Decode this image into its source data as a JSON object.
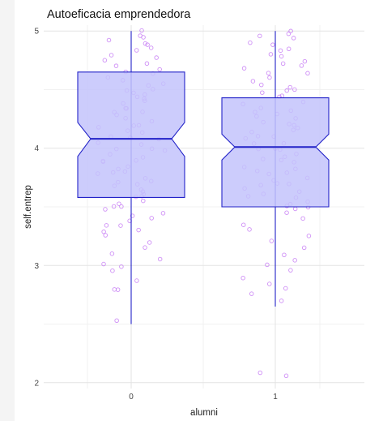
{
  "chart_data": {
    "type": "boxplot",
    "title": "Autoeficacia emprendedora",
    "xlabel": "alumni",
    "ylabel": "self.entrep",
    "categories": [
      "0",
      "1"
    ],
    "y_ticks": [
      2,
      3,
      4,
      5
    ],
    "ylim": [
      1.95,
      5.05
    ],
    "grid": true,
    "notched": true,
    "colors": {
      "box_fill": "#c3c3fb",
      "box_stroke": "#2323c8",
      "points": "#c77df5",
      "grid_major": "#e3e3e3",
      "grid_minor": "#f1f1f1"
    },
    "boxes": [
      {
        "category": "0",
        "whisker_low": 2.5,
        "q1": 3.58,
        "median": 4.08,
        "q3": 4.65,
        "whisker_high": 5.0,
        "notch_low": 3.93,
        "notch_high": 4.22
      },
      {
        "category": "1",
        "whisker_low": 2.65,
        "q1": 3.5,
        "median": 4.01,
        "q3": 4.43,
        "whisker_high": 5.0,
        "notch_low": 3.9,
        "notch_high": 4.12
      }
    ],
    "points": [
      {
        "category": "0",
        "y": [
          5.0,
          4.97,
          4.95,
          4.93,
          4.9,
          4.88,
          4.85,
          4.83,
          4.8,
          4.78,
          4.75,
          4.72,
          4.7,
          4.68,
          4.65,
          4.63,
          4.6,
          4.58,
          4.55,
          4.53,
          4.5,
          4.5,
          4.48,
          4.45,
          4.43,
          4.42,
          4.4,
          4.38,
          4.35,
          4.33,
          4.3,
          4.3,
          4.28,
          4.25,
          4.23,
          4.2,
          4.2,
          4.18,
          4.15,
          4.13,
          4.1,
          4.1,
          4.08,
          4.05,
          4.03,
          4.0,
          4.0,
          3.98,
          3.95,
          3.93,
          3.9,
          3.9,
          3.88,
          3.85,
          3.83,
          3.8,
          3.8,
          3.78,
          3.75,
          3.73,
          3.7,
          3.7,
          3.68,
          3.65,
          3.63,
          3.6,
          3.6,
          3.58,
          3.55,
          3.53,
          3.5,
          3.5,
          3.48,
          3.45,
          3.43,
          3.4,
          3.38,
          3.35,
          3.33,
          3.3,
          3.28,
          3.25,
          3.2,
          3.15,
          3.1,
          3.05,
          3.02,
          3.0,
          2.95,
          2.88,
          2.8,
          2.8,
          2.53
        ]
      },
      {
        "category": "1",
        "y": [
          5.0,
          4.98,
          4.95,
          4.93,
          4.9,
          4.88,
          4.85,
          4.83,
          4.8,
          4.78,
          4.75,
          4.72,
          4.7,
          4.68,
          4.65,
          4.63,
          4.6,
          4.58,
          4.55,
          4.53,
          4.5,
          4.5,
          4.48,
          4.45,
          4.43,
          4.4,
          4.38,
          4.35,
          4.33,
          4.3,
          4.3,
          4.28,
          4.25,
          4.23,
          4.2,
          4.2,
          4.18,
          4.15,
          4.13,
          4.1,
          4.1,
          4.08,
          4.05,
          4.03,
          4.0,
          4.0,
          3.98,
          3.95,
          3.93,
          3.9,
          3.9,
          3.88,
          3.85,
          3.83,
          3.8,
          3.8,
          3.78,
          3.75,
          3.73,
          3.7,
          3.7,
          3.68,
          3.65,
          3.63,
          3.6,
          3.6,
          3.58,
          3.55,
          3.53,
          3.5,
          3.5,
          3.48,
          3.45,
          3.4,
          3.35,
          3.3,
          3.25,
          3.2,
          3.15,
          3.1,
          3.05,
          3.0,
          2.95,
          2.9,
          2.85,
          2.8,
          2.75,
          2.7,
          2.05,
          2.08
        ]
      }
    ]
  }
}
